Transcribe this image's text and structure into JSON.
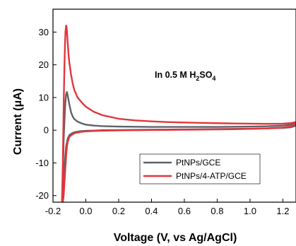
{
  "chart_data": {
    "type": "line",
    "xlabel": "Voltage (V, vs Ag/AgCl)",
    "ylabel": "Current (μA)",
    "annotation": {
      "prefix": "In 0.5 M H",
      "sub1": "2",
      "mid": "SO",
      "sub2": "4"
    },
    "xlim": [
      -0.2,
      1.28
    ],
    "ylim": [
      -22,
      37
    ],
    "xticks": [
      -0.2,
      0.0,
      0.2,
      0.4,
      0.6,
      0.8,
      1.0,
      1.2
    ],
    "xtick_labels": [
      "-0.2",
      "0.0",
      "0.2",
      "0.4",
      "0.6",
      "0.8",
      "1.0",
      "1.2"
    ],
    "yticks": [
      -20,
      -10,
      0,
      10,
      20,
      30
    ],
    "ytick_labels": [
      "-20",
      "-10",
      "0",
      "10",
      "20",
      "30"
    ],
    "series": [
      {
        "name": "PtNPs/GCE",
        "color": "#5f6268",
        "x": [
          -0.145,
          -0.138,
          -0.135,
          -0.13,
          -0.125,
          -0.12,
          -0.115,
          -0.11,
          -0.1,
          -0.09,
          -0.08,
          -0.07,
          -0.05,
          -0.02,
          0.0,
          0.05,
          0.1,
          0.2,
          0.3,
          0.4,
          0.5,
          0.6,
          0.7,
          0.8,
          0.9,
          1.0,
          1.1,
          1.2,
          1.25,
          1.28,
          1.28,
          1.25,
          1.2,
          1.1,
          1.0,
          0.9,
          0.8,
          0.7,
          0.6,
          0.5,
          0.4,
          0.3,
          0.2,
          0.1,
          0.05,
          0.0,
          -0.03,
          -0.06,
          -0.08,
          -0.1,
          -0.11,
          -0.12,
          -0.125,
          -0.13,
          -0.135,
          -0.138,
          -0.14
        ],
        "y": [
          -22,
          -10,
          -3,
          3,
          8,
          11,
          11.7,
          10.5,
          7.8,
          5.5,
          4.2,
          3.4,
          2.6,
          2.0,
          1.7,
          1.4,
          1.25,
          1.1,
          1.05,
          1.0,
          1.0,
          1.0,
          1.0,
          1.0,
          1.05,
          1.1,
          1.2,
          1.4,
          1.7,
          2.2,
          1.4,
          0.9,
          0.7,
          0.55,
          0.45,
          0.4,
          0.35,
          0.3,
          0.25,
          0.2,
          0.15,
          0.1,
          0.05,
          0.0,
          -0.1,
          -0.2,
          -0.3,
          -0.5,
          -0.8,
          -1.5,
          -2.5,
          -5,
          -8,
          -12,
          -16,
          -20,
          -22
        ]
      },
      {
        "name": "PtNPs/4-ATP/GCE",
        "color": "#e2363c",
        "x": [
          -0.145,
          -0.14,
          -0.137,
          -0.134,
          -0.13,
          -0.127,
          -0.124,
          -0.12,
          -0.117,
          -0.114,
          -0.11,
          -0.105,
          -0.1,
          -0.09,
          -0.08,
          -0.07,
          -0.05,
          -0.02,
          0.0,
          0.05,
          0.1,
          0.2,
          0.3,
          0.4,
          0.5,
          0.6,
          0.7,
          0.8,
          0.9,
          1.0,
          1.1,
          1.2,
          1.25,
          1.28,
          1.28,
          1.25,
          1.2,
          1.1,
          1.0,
          0.9,
          0.8,
          0.7,
          0.6,
          0.5,
          0.4,
          0.3,
          0.2,
          0.1,
          0.05,
          0.0,
          -0.03,
          -0.06,
          -0.08,
          -0.1,
          -0.11,
          -0.115,
          -0.12,
          -0.125,
          -0.13,
          -0.135,
          -0.14
        ],
        "y": [
          -22,
          -10,
          0,
          10,
          20,
          26,
          30,
          32,
          31.5,
          29.5,
          26.5,
          23,
          20.5,
          17,
          14.3,
          12.3,
          10.0,
          8.2,
          7.2,
          5.6,
          4.6,
          3.5,
          3.0,
          2.7,
          2.5,
          2.35,
          2.25,
          2.15,
          2.05,
          2.0,
          1.95,
          2.0,
          2.2,
          2.5,
          2.0,
          1.2,
          0.8,
          0.55,
          0.4,
          0.3,
          0.25,
          0.2,
          0.15,
          0.1,
          0.05,
          0.0,
          -0.05,
          -0.15,
          -0.25,
          -0.35,
          -0.5,
          -0.8,
          -1.2,
          -2,
          -3.5,
          -5,
          -8,
          -12,
          -16,
          -20,
          -22
        ]
      }
    ]
  }
}
